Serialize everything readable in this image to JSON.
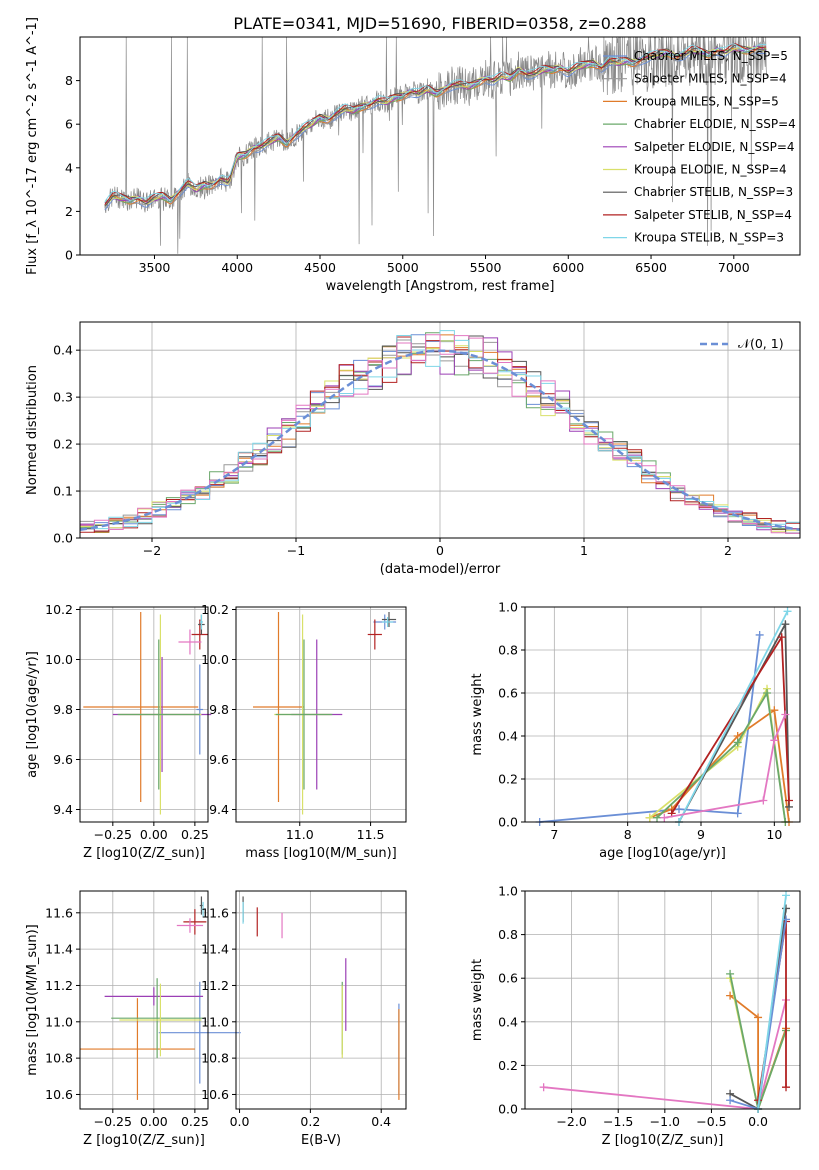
{
  "title": "PLATE=0341, MJD=51690, FIBERID=0358, z=0.288",
  "chart_data": [
    {
      "type": "line",
      "title": "PLATE=0341, MJD=51690, FIBERID=0358, z=0.288",
      "xlabel": "wavelength [Angstrom, rest frame]",
      "ylabel": "Flux [f_λ 10^-17 erg cm^-2 s^-1 A^-1]",
      "xlim": [
        3050,
        7400
      ],
      "ylim": [
        0,
        10
      ],
      "xticks": [
        "3500",
        "4000",
        "4500",
        "5000",
        "5500",
        "6000",
        "6500",
        "7000"
      ],
      "yticks": [
        "0",
        "2",
        "4",
        "6",
        "8"
      ],
      "legend_position": "right",
      "series": [
        {
          "name": "Chabrier MILES, N_SSP=5",
          "color": "#6b8fd6"
        },
        {
          "name": "Salpeter MILES, N_SSP=4",
          "color": "#999999"
        },
        {
          "name": "Kroupa MILES, N_SSP=5",
          "color": "#e07b2a"
        },
        {
          "name": "Chabrier ELODIE, N_SSP=4",
          "color": "#6aa86a"
        },
        {
          "name": "Salpeter ELODIE, N_SSP=4",
          "color": "#9b3fb5"
        },
        {
          "name": "Kroupa ELODIE, N_SSP=4",
          "color": "#d9e06a"
        },
        {
          "name": "Chabrier STELIB, N_SSP=3",
          "color": "#555555"
        },
        {
          "name": "Salpeter STELIB, N_SSP=4",
          "color": "#b22222"
        },
        {
          "name": "Kroupa STELIB, N_SSP=3",
          "color": "#7fd6e8"
        }
      ],
      "spectrum_x": [
        3200,
        3250,
        3300,
        3350,
        3400,
        3450,
        3500,
        3550,
        3600,
        3650,
        3700,
        3750,
        3800,
        3850,
        3900,
        3950,
        4000,
        4050,
        4100,
        4150,
        4200,
        4250,
        4300,
        4350,
        4400,
        4450,
        4500,
        4550,
        4600,
        4650,
        4700,
        4750,
        4800,
        4850,
        4900,
        4950,
        5000,
        5050,
        5100,
        5150,
        5200,
        5250,
        5300,
        5350,
        5400,
        5450,
        5500,
        5550,
        5600,
        5650,
        5700,
        5750,
        5800,
        5850,
        5900,
        5950,
        6000,
        6050,
        6100,
        6150,
        6200,
        6250,
        6300,
        6350,
        6400,
        6450,
        6500,
        6550,
        6600,
        6650,
        6700,
        6750,
        6800,
        6850,
        6900,
        6950,
        7000,
        7050,
        7100,
        7150,
        7200
      ],
      "spectrum_y": [
        2.3,
        2.7,
        2.6,
        2.5,
        2.6,
        2.4,
        2.6,
        2.7,
        2.5,
        2.9,
        3.3,
        3.0,
        3.2,
        3.2,
        3.5,
        3.3,
        4.5,
        4.6,
        4.9,
        5.0,
        5.2,
        5.4,
        5.1,
        5.5,
        5.8,
        6.0,
        6.3,
        6.2,
        6.5,
        6.7,
        6.6,
        6.8,
        6.9,
        7.1,
        7.0,
        7.2,
        7.3,
        7.5,
        7.4,
        7.6,
        7.4,
        7.6,
        7.8,
        7.8,
        7.7,
        7.9,
        8.1,
        8.0,
        8.2,
        8.1,
        8.5,
        8.3,
        8.3,
        8.5,
        8.5,
        8.6,
        8.4,
        8.6,
        8.7,
        8.8,
        8.6,
        8.9,
        8.8,
        8.9,
        8.8,
        9.0,
        9.1,
        9.2,
        9.3,
        9.1,
        9.2,
        9.4,
        9.3,
        9.2,
        9.4,
        9.3,
        9.5,
        9.4,
        9.4,
        9.5,
        9.4
      ]
    },
    {
      "type": "step-histogram",
      "xlabel": "(data-model)/error",
      "ylabel": "Normed distribution",
      "xlim": [
        -2.5,
        2.5
      ],
      "ylim": [
        0,
        0.46
      ],
      "xticks": [
        "−2",
        "−1",
        "0",
        "1",
        "2"
      ],
      "yticks": [
        "0.0",
        "0.1",
        "0.2",
        "0.3",
        "0.4"
      ],
      "legend": [
        {
          "name": "𝒩(0, 1)",
          "style": "dashed",
          "color": "#6b8fd6"
        }
      ],
      "bin_edges_start": -2.5,
      "bin_width": 0.1,
      "reference_curve": "gaussian mean 0 sigma 1"
    },
    {
      "type": "scatter-errorbar",
      "xlabel": "Z [log10(Z/Z_sun)]",
      "ylabel": "age [log10(age/yr)]",
      "xlim": [
        -0.45,
        0.33
      ],
      "ylim": [
        9.35,
        10.21
      ],
      "xticks": [
        "−0.25",
        "0.00",
        "0.25"
      ],
      "yticks": [
        "9.4",
        "9.6",
        "9.8",
        "10.0",
        "10.2"
      ],
      "points": [
        {
          "model": "Chabrier MILES",
          "x": 0.28,
          "y": 9.8,
          "xerr": 0.02,
          "yerr": 0.18,
          "color": "#6b8fd6"
        },
        {
          "model": "Kroupa MILES",
          "x": -0.08,
          "y": 9.81,
          "xerr": 0.35,
          "yerr": 0.38,
          "color": "#e07b2a"
        },
        {
          "model": "Salpeter ELODIE",
          "x": 0.05,
          "y": 9.78,
          "xerr": 0.3,
          "yerr": 0.23,
          "color": "#9b3fb5"
        },
        {
          "model": "Kroupa ELODIE",
          "x": 0.04,
          "y": 9.78,
          "xerr": 0.25,
          "yerr": 0.4,
          "color": "#d9e06a"
        },
        {
          "model": "Chabrier ELODIE",
          "x": 0.03,
          "y": 9.78,
          "xerr": 0.25,
          "yerr": 0.3,
          "color": "#6aa86a"
        },
        {
          "model": "Salpeter STELIB",
          "x": 0.28,
          "y": 10.1,
          "xerr": 0.05,
          "yerr": 0.06,
          "color": "#b22222"
        },
        {
          "model": "Chabrier STELIB",
          "x": 0.29,
          "y": 10.14,
          "xerr": 0.02,
          "yerr": 0.04,
          "color": "#555555"
        },
        {
          "model": "Kroupa STELIB",
          "x": 0.29,
          "y": 10.15,
          "xerr": 0.01,
          "yerr": 0.03,
          "color": "#7fd6e8"
        },
        {
          "model": "Salpeter MILES",
          "x": 0.22,
          "y": 10.07,
          "xerr": 0.07,
          "yerr": 0.05,
          "color": "#e377c2"
        }
      ]
    },
    {
      "type": "scatter-errorbar",
      "xlabel": "mass [log10(M/M_sun)]",
      "xlim": [
        10.55,
        11.75
      ],
      "ylim": [
        9.35,
        10.21
      ],
      "xticks": [
        "11.0",
        "11.5"
      ],
      "yticks": [
        "9.4",
        "9.6",
        "9.8",
        "10.0",
        "10.2"
      ],
      "points": [
        {
          "x": 11.6,
          "y": 10.15,
          "xerr": 0.08,
          "yerr": 0.03,
          "color": "#6b8fd6"
        },
        {
          "x": 10.85,
          "y": 9.81,
          "xerr": 0.18,
          "yerr": 0.38,
          "color": "#e07b2a"
        },
        {
          "x": 11.12,
          "y": 9.78,
          "xerr": 0.18,
          "yerr": 0.3,
          "color": "#9b3fb5"
        },
        {
          "x": 11.02,
          "y": 9.78,
          "xerr": 0.2,
          "yerr": 0.4,
          "color": "#d9e06a"
        },
        {
          "x": 11.03,
          "y": 9.78,
          "xerr": 0.2,
          "yerr": 0.3,
          "color": "#6aa86a"
        },
        {
          "x": 11.53,
          "y": 10.1,
          "xerr": 0.05,
          "yerr": 0.06,
          "color": "#b22222"
        },
        {
          "x": 11.63,
          "y": 10.16,
          "xerr": 0.05,
          "yerr": 0.03,
          "color": "#555555"
        },
        {
          "x": 11.62,
          "y": 10.15,
          "xerr": 0.04,
          "yerr": 0.02,
          "color": "#7fd6e8"
        }
      ]
    },
    {
      "type": "line",
      "xlabel": "age [log10(age/yr)]",
      "ylabel": "mass weight",
      "xlim": [
        6.6,
        10.35
      ],
      "ylim": [
        0,
        1
      ],
      "xticks": [
        "7",
        "8",
        "9",
        "10"
      ],
      "yticks": [
        "0.0",
        "0.2",
        "0.4",
        "0.6",
        "0.8",
        "1.0"
      ],
      "series": [
        {
          "model": "Chabrier MILES",
          "color": "#6b8fd6",
          "x": [
            6.8,
            8.7,
            9.5,
            9.8
          ],
          "y": [
            0.0,
            0.06,
            0.04,
            0.87
          ]
        },
        {
          "model": "Kroupa MILES",
          "color": "#e07b2a",
          "x": [
            8.3,
            8.6,
            9.5,
            10.0,
            10.2
          ],
          "y": [
            0.02,
            0.06,
            0.4,
            0.52,
            0.0
          ]
        },
        {
          "model": "Kroupa ELODIE",
          "color": "#d9e06a",
          "x": [
            8.3,
            9.5,
            9.9,
            10.15
          ],
          "y": [
            0.02,
            0.35,
            0.62,
            0.0
          ]
        },
        {
          "model": "Chabrier ELODIE",
          "color": "#6aa86a",
          "x": [
            8.4,
            9.5,
            9.9,
            10.15
          ],
          "y": [
            0.02,
            0.37,
            0.6,
            0.0
          ]
        },
        {
          "model": "Chabrier STELIB",
          "color": "#555555",
          "x": [
            8.7,
            10.15,
            10.2
          ],
          "y": [
            0.0,
            0.92,
            0.07
          ]
        },
        {
          "model": "Salpeter STELIB",
          "color": "#b22222",
          "x": [
            8.6,
            10.1,
            10.2
          ],
          "y": [
            0.04,
            0.86,
            0.1
          ]
        },
        {
          "model": "Kroupa STELIB",
          "color": "#7fd6e8",
          "x": [
            8.7,
            10.18
          ],
          "y": [
            0.0,
            0.98
          ]
        },
        {
          "model": "Salpeter MILES",
          "color": "#e377c2",
          "x": [
            8.5,
            9.85,
            10.0,
            10.15
          ],
          "y": [
            0.02,
            0.1,
            0.38,
            0.5
          ]
        }
      ]
    },
    {
      "type": "scatter-errorbar",
      "xlabel": "Z [log10(Z/Z_sun)]",
      "ylabel": "mass [log10(M/M_sun)]",
      "xlim": [
        -0.45,
        0.33
      ],
      "ylim": [
        10.52,
        11.72
      ],
      "xticks": [
        "−0.25",
        "0.00",
        "0.25"
      ],
      "yticks": [
        "10.6",
        "10.8",
        "11.0",
        "11.2",
        "11.4",
        "11.6"
      ],
      "points": [
        {
          "x": 0.28,
          "y": 10.94,
          "xerr": 0.25,
          "yerr": 0.28,
          "color": "#6b8fd6"
        },
        {
          "x": -0.1,
          "y": 10.85,
          "xerr": 0.35,
          "yerr": 0.28,
          "color": "#e07b2a"
        },
        {
          "x": 0.0,
          "y": 11.14,
          "xerr": 0.3,
          "yerr": 0.05,
          "color": "#9b3fb5"
        },
        {
          "x": 0.02,
          "y": 11.02,
          "xerr": 0.28,
          "yerr": 0.22,
          "color": "#6aa86a"
        },
        {
          "x": 0.04,
          "y": 11.01,
          "xerr": 0.25,
          "yerr": 0.2,
          "color": "#d9e06a"
        },
        {
          "x": 0.25,
          "y": 11.55,
          "xerr": 0.07,
          "yerr": 0.07,
          "color": "#b22222"
        },
        {
          "x": 0.29,
          "y": 11.64,
          "xerr": 0.01,
          "yerr": 0.05,
          "color": "#555555"
        },
        {
          "x": 0.3,
          "y": 11.62,
          "xerr": 0.01,
          "yerr": 0.04,
          "color": "#7fd6e8"
        },
        {
          "x": 0.22,
          "y": 11.53,
          "xerr": 0.08,
          "yerr": 0.04,
          "color": "#e377c2"
        }
      ]
    },
    {
      "type": "scatter-errorbar",
      "xlabel": "E(B-V)",
      "xlim": [
        -0.01,
        0.47
      ],
      "ylim": [
        10.52,
        11.72
      ],
      "xticks": [
        "0.0",
        "0.2",
        "0.4"
      ],
      "yticks": [
        "10.6",
        "10.8",
        "11.0",
        "11.2",
        "11.4",
        "11.6"
      ],
      "points": [
        {
          "x": 0.45,
          "y": 10.85,
          "yerr": 0.25,
          "color": "#6b8fd6"
        },
        {
          "x": 0.45,
          "y": 10.82,
          "yerr": 0.25,
          "color": "#e07b2a"
        },
        {
          "x": 0.3,
          "y": 11.15,
          "yerr": 0.2,
          "color": "#9b3fb5"
        },
        {
          "x": 0.29,
          "y": 11.02,
          "yerr": 0.2,
          "color": "#6aa86a"
        },
        {
          "x": 0.29,
          "y": 11.0,
          "yerr": 0.2,
          "color": "#d9e06a"
        },
        {
          "x": 0.05,
          "y": 11.55,
          "yerr": 0.08,
          "color": "#b22222"
        },
        {
          "x": 0.01,
          "y": 11.62,
          "yerr": 0.07,
          "color": "#555555"
        },
        {
          "x": 0.01,
          "y": 11.6,
          "yerr": 0.06,
          "color": "#7fd6e8"
        },
        {
          "x": 0.12,
          "y": 11.53,
          "yerr": 0.07,
          "color": "#e377c2"
        }
      ]
    },
    {
      "type": "line",
      "xlabel": "Z [log10(Z/Z_sun)]",
      "ylabel": "mass weight",
      "xlim": [
        -2.5,
        0.45
      ],
      "ylim": [
        0,
        1
      ],
      "xticks": [
        "−2.0",
        "−1.5",
        "−1.0",
        "−0.5",
        "0.0"
      ],
      "yticks": [
        "0.0",
        "0.2",
        "0.4",
        "0.6",
        "0.8",
        "1.0"
      ],
      "series": [
        {
          "model": "Salpeter MILES",
          "color": "#e377c2",
          "x": [
            -2.3,
            0.0,
            0.3
          ],
          "y": [
            0.1,
            0.0,
            0.5
          ]
        },
        {
          "model": "Kroupa MILES",
          "color": "#e07b2a",
          "x": [
            -0.3,
            0.0,
            0.0,
            0.3
          ],
          "y": [
            0.52,
            0.42,
            0.0,
            0.37
          ]
        },
        {
          "model": "Kroupa ELODIE",
          "color": "#d9e06a",
          "x": [
            -0.3,
            0.0,
            0.3
          ],
          "y": [
            0.6,
            0.0,
            0.36
          ]
        },
        {
          "model": "Chabrier ELODIE",
          "color": "#6aa86a",
          "x": [
            -0.3,
            0.0,
            0.3
          ],
          "y": [
            0.62,
            0.0,
            0.36
          ]
        },
        {
          "model": "Chabrier STELIB",
          "color": "#555555",
          "x": [
            -0.3,
            0.0,
            0.3
          ],
          "y": [
            0.07,
            0.0,
            0.92
          ]
        },
        {
          "model": "Salpeter STELIB",
          "color": "#b22222",
          "x": [
            0.0,
            0.3,
            0.3
          ],
          "y": [
            0.04,
            0.86,
            0.1
          ]
        },
        {
          "model": "Chabrier MILES",
          "color": "#6b8fd6",
          "x": [
            -0.3,
            0.0,
            0.3
          ],
          "y": [
            0.04,
            0.0,
            0.87
          ]
        },
        {
          "model": "Kroupa STELIB",
          "color": "#7fd6e8",
          "x": [
            0.0,
            0.3
          ],
          "y": [
            0.0,
            0.98
          ]
        }
      ]
    }
  ]
}
